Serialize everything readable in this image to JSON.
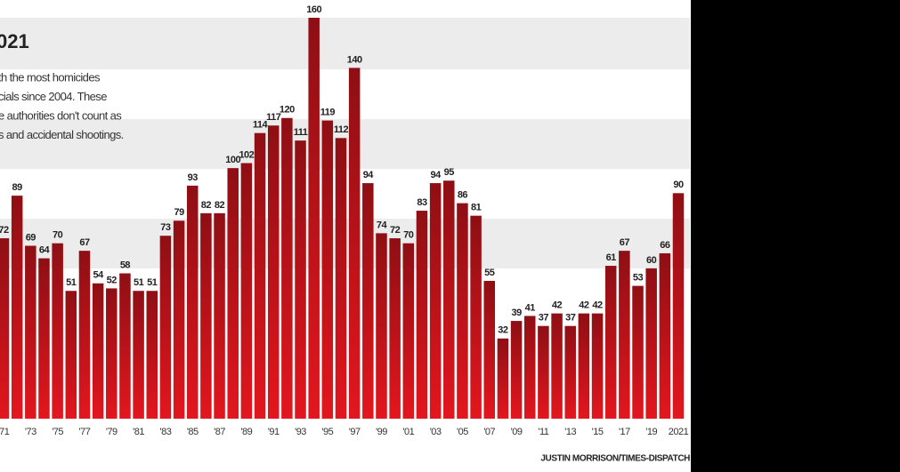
{
  "chart_data": {
    "type": "bar",
    "title": "021",
    "subtitle_lines": [
      "th the most homicides",
      "cials since 2004. These",
      "e authorities don't count as",
      "s and accidental shootings."
    ],
    "credit": "JUSTIN MORRISON/TIMES-DISPATCH",
    "categories": [
      "'71",
      null,
      "'73",
      null,
      "'75",
      null,
      "'77",
      null,
      "'79",
      null,
      "'81",
      null,
      "'83",
      null,
      "'85",
      null,
      "'87",
      null,
      "'89",
      null,
      "'91",
      null,
      "'93",
      null,
      "'95",
      null,
      "'97",
      null,
      "'99",
      null,
      "'01",
      null,
      "'03",
      null,
      "'05",
      null,
      "'07",
      null,
      "'09",
      null,
      "'11",
      null,
      "'13",
      null,
      "'15",
      null,
      "'17",
      null,
      "'19",
      null,
      "2021"
    ],
    "values": [
      72,
      89,
      69,
      64,
      70,
      51,
      67,
      54,
      52,
      58,
      51,
      51,
      73,
      79,
      93,
      82,
      82,
      100,
      102,
      114,
      117,
      120,
      111,
      160,
      119,
      112,
      140,
      94,
      74,
      72,
      70,
      83,
      94,
      95,
      86,
      81,
      55,
      32,
      39,
      41,
      37,
      42,
      37,
      42,
      42,
      61,
      67,
      53,
      60,
      66,
      90
    ],
    "color": "#c3161c",
    "ylim": [
      0,
      160
    ]
  }
}
